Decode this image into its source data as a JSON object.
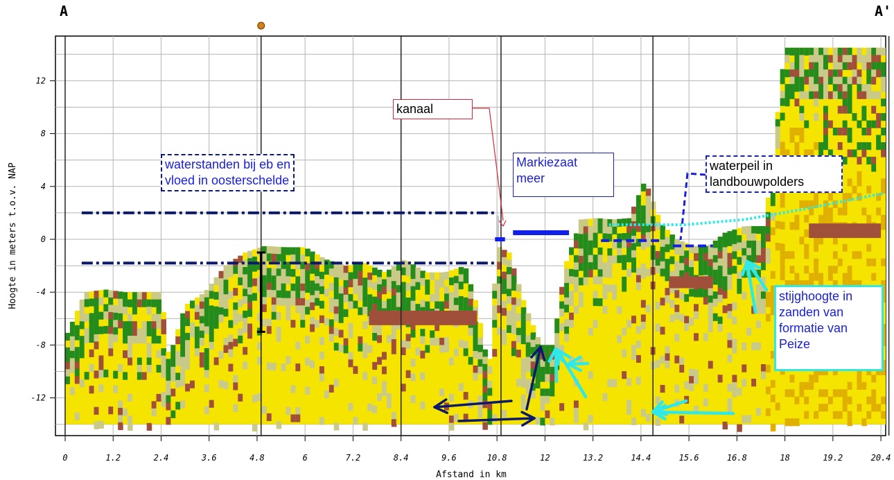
{
  "section": {
    "left_label": "A",
    "right_label": "A'"
  },
  "chart_data": {
    "type": "area",
    "title": "",
    "xlabel": "Afstand in km",
    "ylabel": "Hoogte in meters t.o.v. NAP",
    "xlim": [
      0,
      20.6
    ],
    "ylim": [
      -15,
      15.2
    ],
    "x_ticks": [
      "0",
      "1.2",
      "2.4",
      "3.6",
      "4.8",
      "6",
      "7.2",
      "8.4",
      "9.6",
      "10.8",
      "12",
      "13.2",
      "14.4",
      "15.6",
      "16.8",
      "18",
      "19.2",
      "20.4"
    ],
    "y_ticks": [
      "12",
      "8",
      "4",
      "0",
      "-4",
      "-8",
      "-12"
    ],
    "vertical_lines_km": [
      0,
      4.9,
      8.4,
      10.9,
      14.7,
      20.6
    ],
    "surface_profile": {
      "x": [
        0,
        0.5,
        1,
        1.5,
        2,
        2.4,
        2.6,
        3,
        3.5,
        4,
        4.5,
        5,
        5.5,
        6,
        6.5,
        7,
        7.5,
        8,
        8.5,
        9,
        9.5,
        10,
        10.3,
        10.6,
        10.8,
        11.1,
        11.5,
        11.9,
        12.2,
        12.5,
        12.9,
        13.3,
        13.7,
        14.1,
        14.5,
        14.9,
        15.3,
        15.7,
        16.1,
        16.5,
        17,
        17.5,
        18,
        18.6,
        19.2,
        19.8,
        20.5
      ],
      "top_m": [
        -7.5,
        -4,
        -3.8,
        -4,
        -4,
        -4,
        -9,
        -5,
        -4,
        -2,
        -1,
        -0.5,
        -0.6,
        -0.6,
        -1.5,
        -2,
        -1.8,
        -2.5,
        -1.5,
        -2.5,
        -2.5,
        -2,
        -5,
        -10,
        -0.5,
        -1,
        -5,
        -8,
        -8,
        -2,
        1.5,
        1.6,
        1.5,
        1.6,
        4.5,
        1.2,
        0,
        -0.5,
        -0.5,
        0.5,
        1,
        1,
        14.5,
        14.5,
        14.5,
        14.5,
        14.5
      ]
    },
    "bottom_m": -14,
    "layer_colors": {
      "sand": "#f5e400",
      "clay_light": "#c9c98a",
      "peat": "#a0503a",
      "clay_dense": "#238c1c",
      "deep_sand": "#e0b000"
    },
    "series": [
      {
        "name": "waterstanden bij eb en vloed in oosterschelde",
        "style": "dash-dot",
        "color": "#0c1a6e",
        "levels_m": [
          2,
          -1.8
        ],
        "x": [
          0.5,
          10.8
        ]
      },
      {
        "name": "Markiezaat meer",
        "style": "solid",
        "color": "#1020e8",
        "x": [
          11.2,
          12.6
        ],
        "y": [
          0.5,
          0.5
        ]
      },
      {
        "name": "waterpeil in landbouwpolders",
        "style": "dashed",
        "color": "#1020e8",
        "segments": [
          {
            "x": [
              13.4,
              14.9
            ],
            "y": [
              -0.1,
              -0.1
            ]
          },
          {
            "x": [
              15.2,
              16.2
            ],
            "y": [
              -0.5,
              -0.5
            ]
          }
        ]
      },
      {
        "name": "stijghoogte in zanden van formatie van Peize",
        "style": "dotted",
        "color": "#30e8e8",
        "x": [
          13.6,
          15.5,
          17,
          18.5,
          20.5
        ],
        "y": [
          1.1,
          1.1,
          1.5,
          2.3,
          3.5
        ]
      }
    ],
    "tidal_range_bar": {
      "x": 4.9,
      "y": [
        -1,
        -7
      ]
    },
    "marker": {
      "x": 4.9,
      "color": "#d4801a"
    },
    "annotations": [
      {
        "id": "waterstanden",
        "lines": [
          "waterstanden bij eb en",
          "vloed in oosterschelde"
        ]
      },
      {
        "id": "kanaal",
        "lines": [
          "kanaal"
        ]
      },
      {
        "id": "markiezaat",
        "lines": [
          "Markiezaat",
          "meer"
        ]
      },
      {
        "id": "waterpeil",
        "lines": [
          "waterpeil in",
          "landbouwpolders"
        ]
      },
      {
        "id": "stijghoogte",
        "lines": [
          "stijghoogte in",
          "zanden van",
          "formatie van",
          "Peize"
        ]
      }
    ]
  }
}
